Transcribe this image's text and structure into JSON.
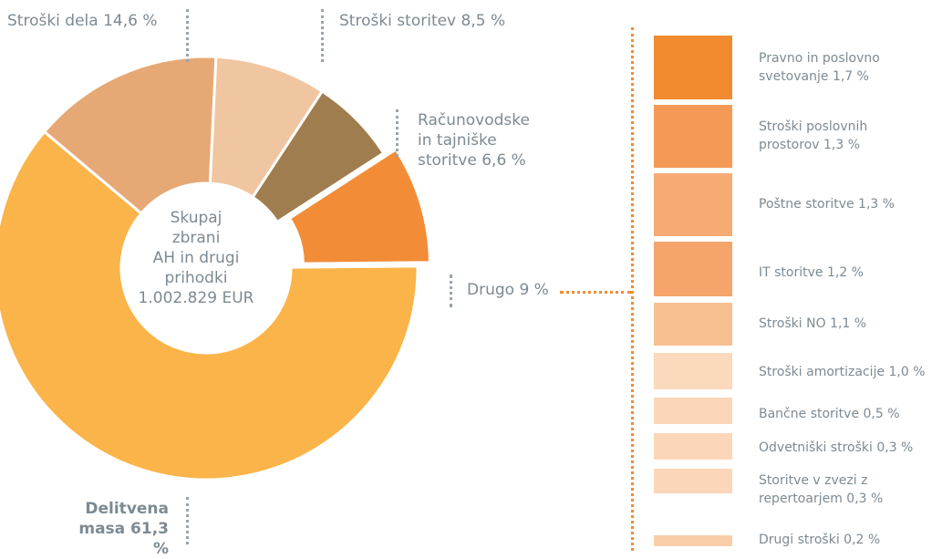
{
  "chart_data": {
    "type": "pie",
    "center_label": [
      "Skupaj",
      "zbrani",
      "AH in drugi",
      "prihodki",
      "1.002.829 EUR"
    ],
    "slices": [
      {
        "label": "Delitvena masa 61,3 %",
        "value": 61.3,
        "color": "#fbb449"
      },
      {
        "label": "Stroški dela 14,6 %",
        "value": 14.6,
        "color": "#e6a874"
      },
      {
        "label": "Stroški storitev 8,5 %",
        "value": 8.5,
        "color": "#f0c6a1"
      },
      {
        "label": "Računovodske in tajniške storitve 6,6 %",
        "value": 6.6,
        "color": "#a07d4f"
      },
      {
        "label": "Drugo 9 %",
        "value": 9.0,
        "color": "#f28c37"
      }
    ],
    "labels": {
      "delitvena": [
        "Delitvena",
        "masa 61,3 %"
      ],
      "stroski_dela": "Stroški dela 14,6 %",
      "stroski_storitev": "Stroški storitev 8,5 %",
      "racunovodske": [
        "Računovodske",
        "in tajniške",
        "storitve 6,6 %"
      ],
      "drugo": "Drugo 9 %"
    },
    "breakdown": [
      {
        "lines": [
          "Pravno in poslovno",
          "svetovanje 1,7 %"
        ],
        "value": 1.7,
        "color": "#f28b30"
      },
      {
        "lines": [
          "Stroški poslovnih",
          "prostorov 1,3 %"
        ],
        "value": 1.3,
        "color": "#f49a56"
      },
      {
        "lines": [
          "Poštne storitve 1,3 %"
        ],
        "value": 1.3,
        "color": "#f6ab74"
      },
      {
        "lines": [
          "IT storitve  1,2 %"
        ],
        "value": 1.2,
        "color": "#f5a56c"
      },
      {
        "lines": [
          "Stroški NO 1,1 %"
        ],
        "value": 1.1,
        "color": "#f8bf91"
      },
      {
        "lines": [
          "Stroški amortizacije 1,0 %"
        ],
        "value": 1.0,
        "color": "#fbd9bd"
      },
      {
        "lines": [
          "Bančne storitve 0,5 %"
        ],
        "value": 0.5,
        "color": "#fbd6b8"
      },
      {
        "lines": [
          "Odvetniški stroški 0,3 %"
        ],
        "value": 0.3,
        "color": "#fbd6b8"
      },
      {
        "lines": [
          "Storitve v zvezi z",
          "repertoarjem 0,3 %"
        ],
        "value": 0.3,
        "color": "#fbd6b8"
      },
      {
        "lines": [
          "Drugi stroški  0,2 %"
        ],
        "value": 0.2,
        "color": "#f8cfa8"
      }
    ]
  }
}
